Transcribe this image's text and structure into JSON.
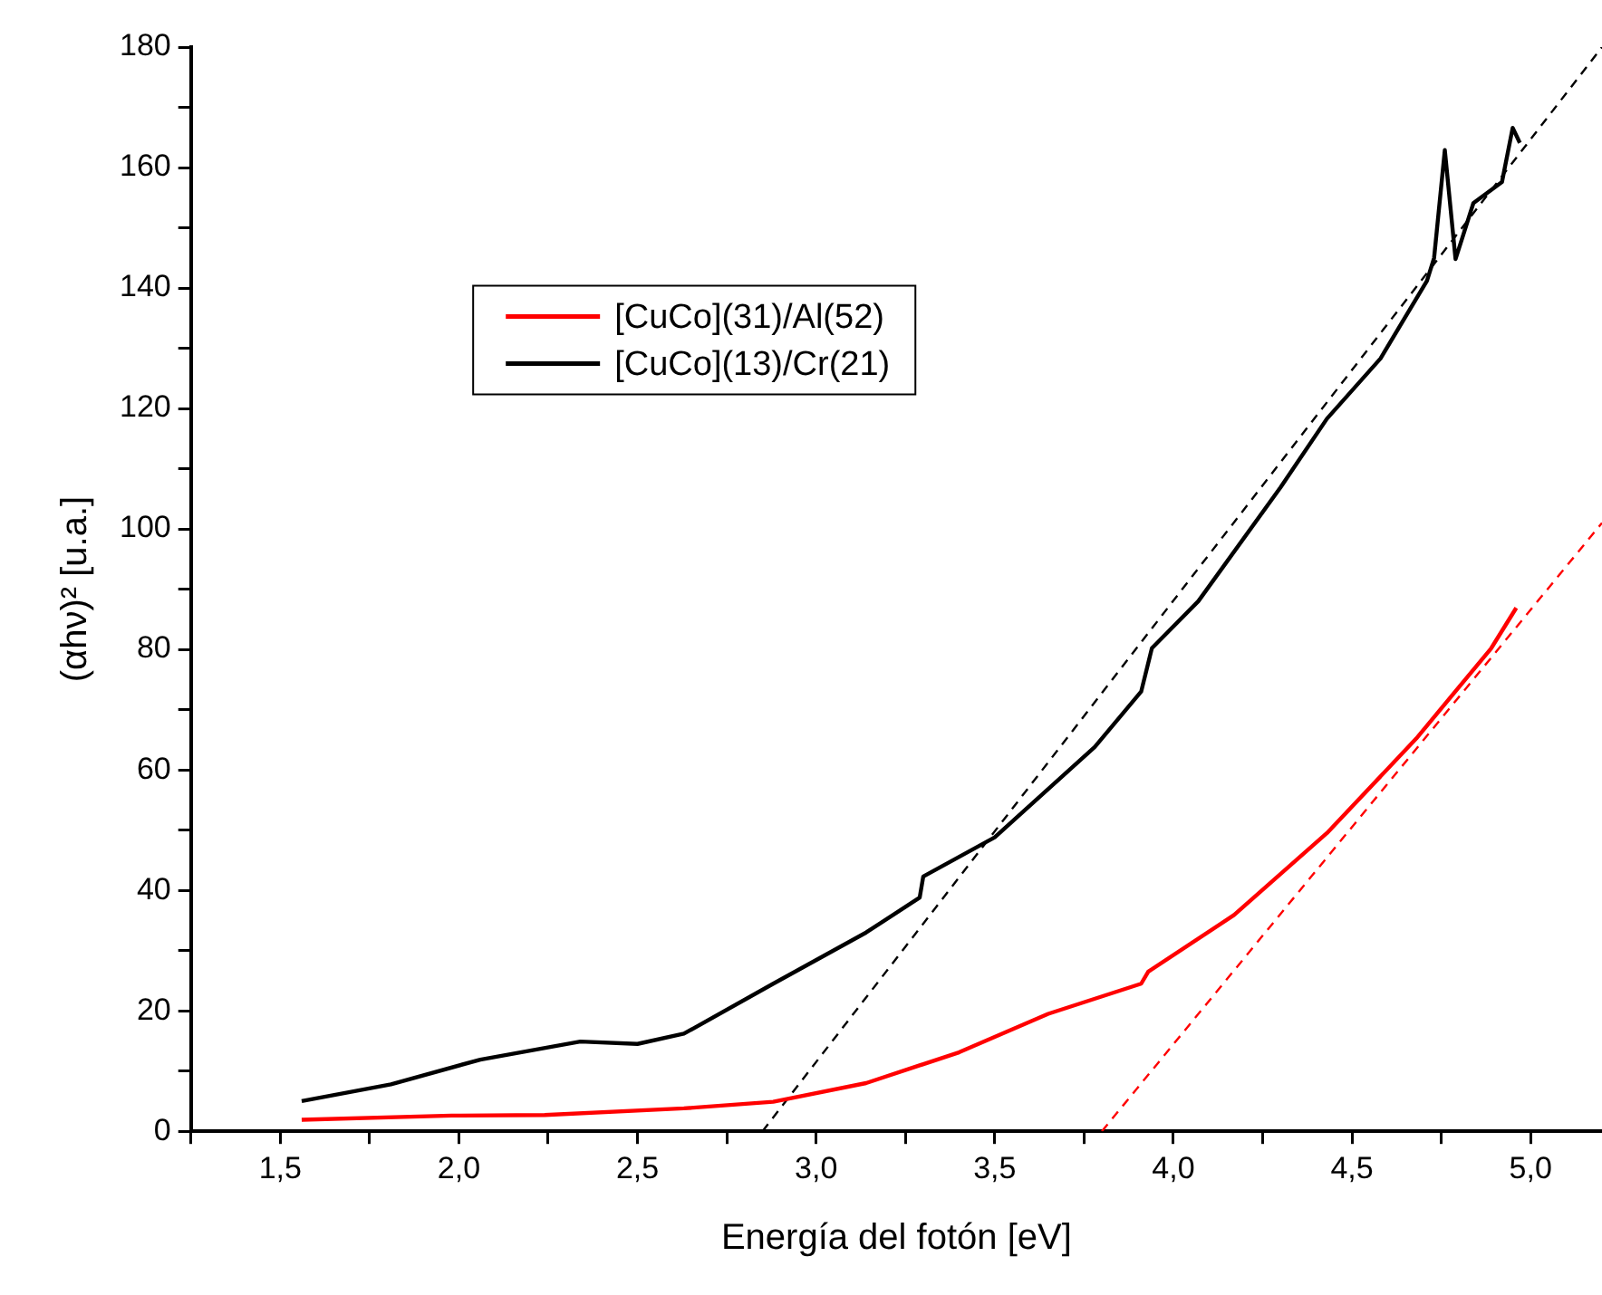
{
  "chart_data": {
    "type": "line",
    "xlabel": "Energía del fotón [eV]",
    "ylabel": "(αhν)² [u.a.]",
    "legend": "top left",
    "grid": false,
    "xlim": [
      1.25,
      5.2
    ],
    "ylim": [
      0,
      180
    ],
    "xticks": [
      {
        "value": 1.25,
        "label": null
      },
      {
        "value": 1.5,
        "label": "1,5"
      },
      {
        "value": 1.75,
        "label": null
      },
      {
        "value": 2.0,
        "label": "2,0"
      },
      {
        "value": 2.25,
        "label": null
      },
      {
        "value": 2.5,
        "label": "2,5"
      },
      {
        "value": 2.75,
        "label": null
      },
      {
        "value": 3.0,
        "label": "3,0"
      },
      {
        "value": 3.25,
        "label": null
      },
      {
        "value": 3.5,
        "label": "3,5"
      },
      {
        "value": 3.75,
        "label": null
      },
      {
        "value": 4.0,
        "label": "4,0"
      },
      {
        "value": 4.25,
        "label": null
      },
      {
        "value": 4.5,
        "label": "4,5"
      },
      {
        "value": 4.75,
        "label": null
      },
      {
        "value": 5.0,
        "label": "5,0"
      }
    ],
    "yticks": [
      0,
      {
        "value": 10,
        "label": null
      },
      20,
      {
        "value": 30,
        "label": null
      },
      40,
      {
        "value": 50,
        "label": null
      },
      60,
      {
        "value": 70,
        "label": null
      },
      80,
      {
        "value": 90,
        "label": null
      },
      100,
      {
        "value": 110,
        "label": null
      },
      120,
      {
        "value": 130,
        "label": null
      },
      140,
      {
        "value": 150,
        "label": null
      },
      160,
      {
        "value": 170,
        "label": null
      },
      180
    ],
    "series": [
      {
        "name": "[CuCo](31)/Al(52)",
        "color": "#ff0000",
        "x": [
          1.56,
          1.98,
          2.24,
          2.63,
          2.88,
          3.14,
          3.4,
          3.65,
          3.91,
          3.93,
          4.17,
          4.43,
          4.68,
          4.89,
          4.96
        ],
        "values": [
          1.9,
          2.6,
          2.7,
          3.8,
          4.9,
          8.0,
          13.1,
          19.5,
          24.5,
          26.5,
          35.9,
          49.5,
          65.2,
          80.2,
          86.9
        ]
      },
      {
        "name": "[CuCo](13)/Cr(21)",
        "color": "#000000",
        "x": [
          1.56,
          1.81,
          2.06,
          2.34,
          2.5,
          2.63,
          2.88,
          3.14,
          3.29,
          3.3,
          3.5,
          3.78,
          3.91,
          3.94,
          4.07,
          4.3,
          4.43,
          4.58,
          4.71,
          4.73,
          4.76,
          4.79,
          4.84,
          4.92,
          4.95,
          4.97
        ],
        "values": [
          5.0,
          7.8,
          11.9,
          14.9,
          14.5,
          16.2,
          24.5,
          33.0,
          38.8,
          42.3,
          48.8,
          63.8,
          73.0,
          80.2,
          88.0,
          106.9,
          118.3,
          128.3,
          141.2,
          145,
          162.9,
          144.8,
          154.1,
          157.6,
          166.6,
          164.1
        ]
      },
      {
        "type": "line",
        "color": "#000000",
        "line_style": "dashed",
        "x": [
          2.85,
          5.2
        ],
        "values": [
          0,
          180
        ]
      },
      {
        "type": "line",
        "color": "#ff0000",
        "line_style": "dashed",
        "x": [
          3.8,
          5.2
        ],
        "values": [
          0,
          101
        ]
      }
    ]
  }
}
